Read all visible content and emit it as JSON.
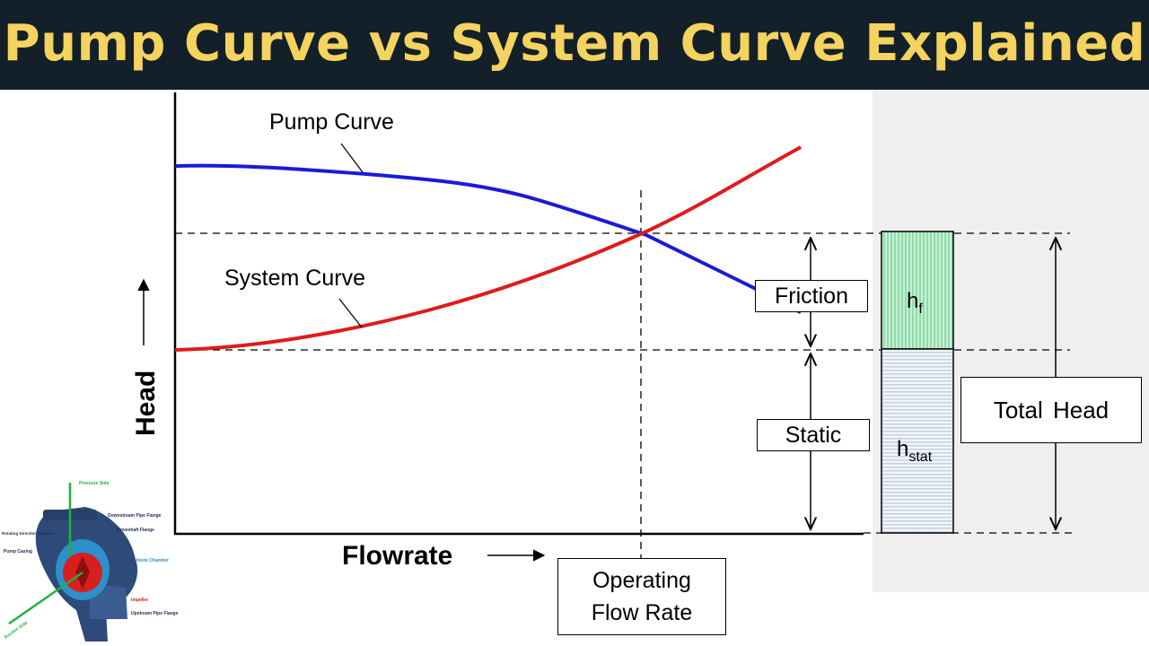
{
  "header": {
    "title": "Pump Curve vs System Curve Explained"
  },
  "axes": {
    "y_label": "Head",
    "x_label": "Flowrate"
  },
  "curves": {
    "pump_label": "Pump Curve",
    "system_label": "System Curve",
    "pump_color": "#1a1adb",
    "system_color": "#e01b1b"
  },
  "annotations": {
    "friction": "Friction",
    "static": "Static",
    "total_head": "Total Head",
    "operating_line1": "Operating",
    "operating_line2": "Flow Rate",
    "hf_main": "h",
    "hf_sub": "f",
    "hstat_main": "h",
    "hstat_sub": "stat"
  },
  "pump_illustration": {
    "labels": {
      "pressure_side": "Pressure Side",
      "downstream_flange": "Downstream Pipe Flange",
      "driveshaft_flange": "Driveshaft Flange",
      "rotating_direction": "Rotating Direction Indicator",
      "pump_casing": "Pump Casing",
      "volute_chamber": "Volute Chamber",
      "impeller": "Impeller",
      "upstream_flange": "Upstream Pipe Flange",
      "suction_side": "Suction Side"
    }
  },
  "colors": {
    "banner_bg": "#132029",
    "banner_text": "#f4d35e",
    "hf_fill": "#9fe0b4",
    "hstat_fill": "#c9d6e6"
  }
}
